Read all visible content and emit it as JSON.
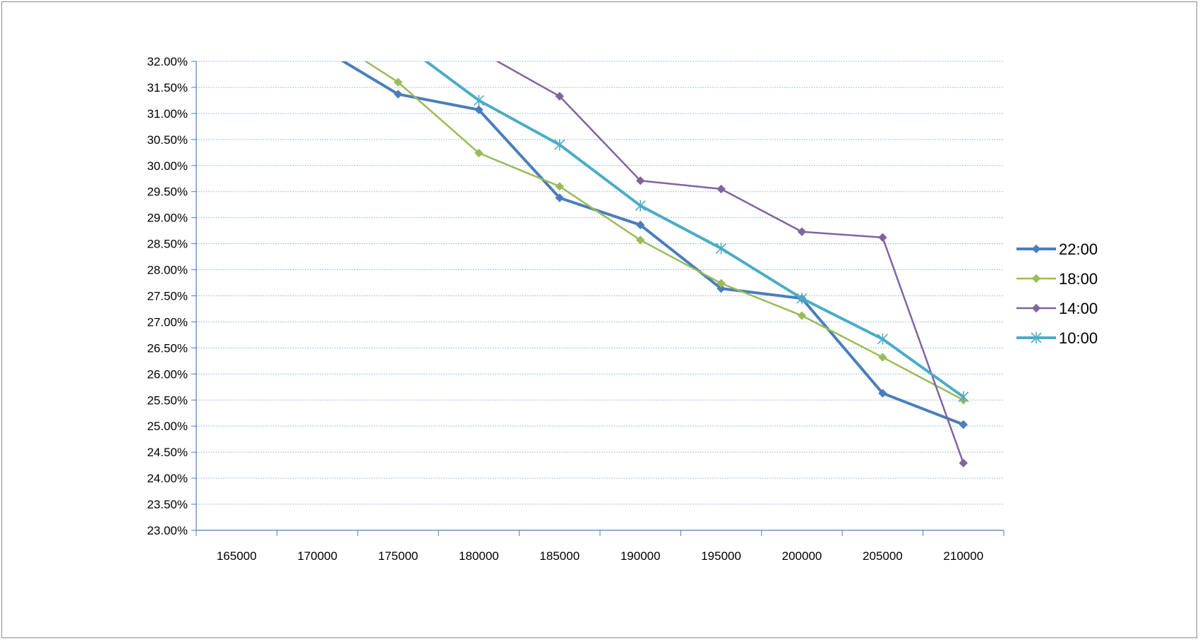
{
  "chart_data": {
    "type": "line",
    "title": "",
    "xlabel": "",
    "ylabel": "",
    "x": [
      170000,
      175000,
      180000,
      185000,
      190000,
      195000,
      200000,
      205000,
      210000
    ],
    "x_ticks": [
      "165000",
      "170000",
      "175000",
      "180000",
      "185000",
      "190000",
      "195000",
      "200000",
      "205000",
      "210000"
    ],
    "y_ticks": [
      "23.00%",
      "23.50%",
      "24.00%",
      "24.50%",
      "25.00%",
      "25.50%",
      "26.00%",
      "26.50%",
      "27.00%",
      "27.50%",
      "28.00%",
      "28.50%",
      "29.00%",
      "29.50%",
      "30.00%",
      "30.50%",
      "31.00%",
      "31.50%",
      "32.00%"
    ],
    "xlim": [
      162500,
      212500
    ],
    "ylim": [
      23.0,
      32.0
    ],
    "y_unit": "%",
    "grid": "horizontal dotted",
    "legend_position": "right",
    "series": [
      {
        "name": "22:00",
        "color": "#4a7ebb",
        "marker": "diamond",
        "width": 4,
        "values": [
          32.3,
          31.37,
          31.07,
          29.38,
          28.86,
          27.64,
          27.45,
          25.63,
          25.03
        ]
      },
      {
        "name": "18:00",
        "color": "#9bbb59",
        "marker": "diamond",
        "width": 2.5,
        "values": [
          32.6,
          31.6,
          30.24,
          29.6,
          28.57,
          27.74,
          27.12,
          26.32,
          25.5
        ]
      },
      {
        "name": "14:00",
        "color": "#8064a2",
        "marker": "diamond",
        "width": 2.5,
        "values": [
          null,
          33.3,
          32.2,
          31.33,
          29.71,
          29.55,
          28.73,
          28.62,
          24.29
        ]
      },
      {
        "name": "10:00",
        "color": "#4bacc6",
        "marker": "star",
        "width": 4,
        "values": [
          null,
          32.4,
          31.25,
          30.4,
          29.23,
          28.41,
          27.45,
          26.67,
          25.56
        ]
      }
    ]
  }
}
